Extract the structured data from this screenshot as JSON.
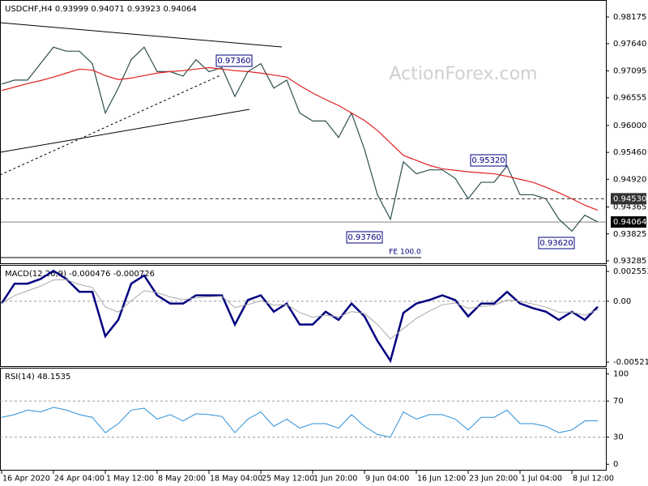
{
  "chart_data": [
    {
      "type": "line",
      "title": "USDCHF,H4  0.93999 0.94071 0.93923 0.94064",
      "watermark": "ActionForex.com",
      "ylim": [
        0.9322,
        0.985
      ],
      "yticks": [
        0.98175,
        {
          "value": 0.9764,
          "label": "0.97640"
        },
        0.97095,
        0.96555,
        {
          "value": 0.96,
          "label": "0.96000"
        },
        {
          "value": 0.9546,
          "label": "0.95460"
        },
        {
          "value": 0.9492,
          "label": "0.94920"
        },
        0.94365,
        0.93825,
        0.93285
      ],
      "hlines": [
        {
          "value": 0.9453,
          "label": "0.94530",
          "style": "dashed",
          "color": "#333333"
        },
        {
          "value": 0.94064,
          "label": "0.94064",
          "style": "solid",
          "color": "#000000"
        }
      ],
      "annotations": [
        "0.97360",
        "0.93760",
        "0.95320",
        "0.93620",
        "FE 100.0"
      ],
      "series": [
        {
          "color": "#2f4f4f",
          "values": [
            0.9683,
            0.9691,
            0.9691,
            0.9724,
            0.9757,
            0.9749,
            0.9749,
            0.9724,
            0.9625,
            0.9675,
            0.9732,
            0.9757,
            0.9708,
            0.9708,
            0.9699,
            0.9732,
            0.9708,
            0.9716,
            0.9658,
            0.9708,
            0.9724,
            0.9675,
            0.9691,
            0.9625,
            0.9609,
            0.9609,
            0.9576,
            0.9625,
            0.9552,
            0.9461,
            0.9412,
            0.9527,
            0.9503,
            0.9511,
            0.9511,
            0.9494,
            0.9453,
            0.9486,
            0.9486,
            0.9519,
            0.9461,
            0.9461,
            0.9453,
            0.9412,
            0.9388,
            0.942,
            0.94064
          ]
        },
        {
          "color": "#e02020",
          "values": [
            0.967,
            0.9677,
            0.9684,
            0.969,
            0.9697,
            0.9705,
            0.9713,
            0.9711,
            0.97,
            0.9692,
            0.9695,
            0.97,
            0.9705,
            0.9708,
            0.971,
            0.9713,
            0.9716,
            0.9713,
            0.971,
            0.9708,
            0.9705,
            0.9701,
            0.9697,
            0.968,
            0.9665,
            0.9652,
            0.964,
            0.9625,
            0.961,
            0.959,
            0.9565,
            0.954,
            0.953,
            0.952,
            0.9513,
            0.951,
            0.9507,
            0.9505,
            0.9503,
            0.9498,
            0.9492,
            0.9486,
            0.9476,
            0.9465,
            0.9453,
            0.944,
            0.943
          ]
        }
      ]
    },
    {
      "type": "line",
      "title": "MACD(12,26,9) -0.000476 -0.000726",
      "ylim": [
        -0.00563,
        0.00304
      ],
      "yticks": [
        0.002553,
        {
          "value": 0,
          "label": "0.00"
        },
        -0.005212
      ],
      "levels": [
        0
      ],
      "series": [
        {
          "color": "#000080",
          "width": 2.5,
          "values": [
            -0.0002,
            0.0015,
            0.0015,
            0.0019,
            0.0026,
            0.0019,
            0.0008,
            0.0008,
            -0.003,
            -0.0016,
            0.0015,
            0.0022,
            0.0005,
            -0.0002,
            -0.0002,
            0.0005,
            0.0005,
            0.0005,
            -0.002,
            0.0001,
            0.0005,
            -0.0009,
            -0.0002,
            -0.002,
            -0.002,
            -0.0009,
            -0.0016,
            -0.0002,
            -0.0013,
            -0.0034,
            -0.0051,
            -0.001,
            -0.0002,
            0.0001,
            0.0005,
            0.0001,
            -0.0013,
            -0.0002,
            -0.0002,
            0.0008,
            -0.0002,
            -0.0006,
            -0.0009,
            -0.0016,
            -0.0009,
            -0.0016,
            -0.000476
          ]
        },
        {
          "color": "#a9a9a9",
          "width": 1,
          "values": [
            -0.0002,
            0.00048,
            0.00089,
            0.00129,
            0.00181,
            0.00185,
            0.00143,
            0.00118,
            -0.00049,
            -0.00093,
            4e-05,
            0.0009,
            0.00074,
            0.00036,
            0.00014,
            0.00028,
            0.00037,
            0.00042,
            -0.00055,
            -0.00029,
            3e-05,
            -0.00034,
            -0.00028,
            -0.00097,
            -0.00138,
            -0.00119,
            -0.00135,
            -0.00089,
            -0.00105,
            -0.00199,
            -0.00323,
            -0.00234,
            -0.00148,
            -0.00085,
            -0.00031,
            -0.00015,
            -0.00061,
            -0.00045,
            -0.00035,
            0.00011,
            -1e-05,
            -0.00025,
            -0.00051,
            -0.00095,
            -0.00093,
            -0.0012,
            -0.000726
          ]
        }
      ]
    },
    {
      "type": "line",
      "title": "RSI(14) 48.1535",
      "ylim": [
        -7,
        106
      ],
      "yticks": [
        100,
        70,
        30,
        0
      ],
      "levels": [
        70,
        30
      ],
      "categories": [
        "16 Apr 2020",
        null,
        null,
        null,
        "24 Apr 04:00",
        null,
        null,
        null,
        "1 May 12:00",
        null,
        null,
        null,
        "8 May 20:00",
        null,
        null,
        null,
        "18 May 04:00",
        null,
        null,
        null,
        "25 May 12:00",
        null,
        null,
        null,
        "1 Jun 20:00",
        null,
        null,
        null,
        "9 Jun 04:00",
        null,
        null,
        null,
        "16 Jun 12:00",
        null,
        null,
        null,
        "23 Jun 20:00",
        null,
        null,
        null,
        "1 Jul 04:00",
        null,
        null,
        null,
        "8 Jul 12:00",
        null,
        null
      ],
      "series": [
        {
          "color": "#2a8fd8",
          "width": 1,
          "values": [
            52,
            55,
            60,
            58,
            63,
            60,
            55,
            52,
            35,
            45,
            60,
            62,
            50,
            55,
            48,
            56,
            55,
            53,
            35,
            50,
            58,
            42,
            50,
            40,
            45,
            45,
            40,
            55,
            42,
            33,
            30,
            58,
            50,
            55,
            55,
            50,
            38,
            52,
            52,
            60,
            45,
            45,
            42,
            35,
            38,
            48,
            48.1535
          ]
        }
      ]
    }
  ]
}
